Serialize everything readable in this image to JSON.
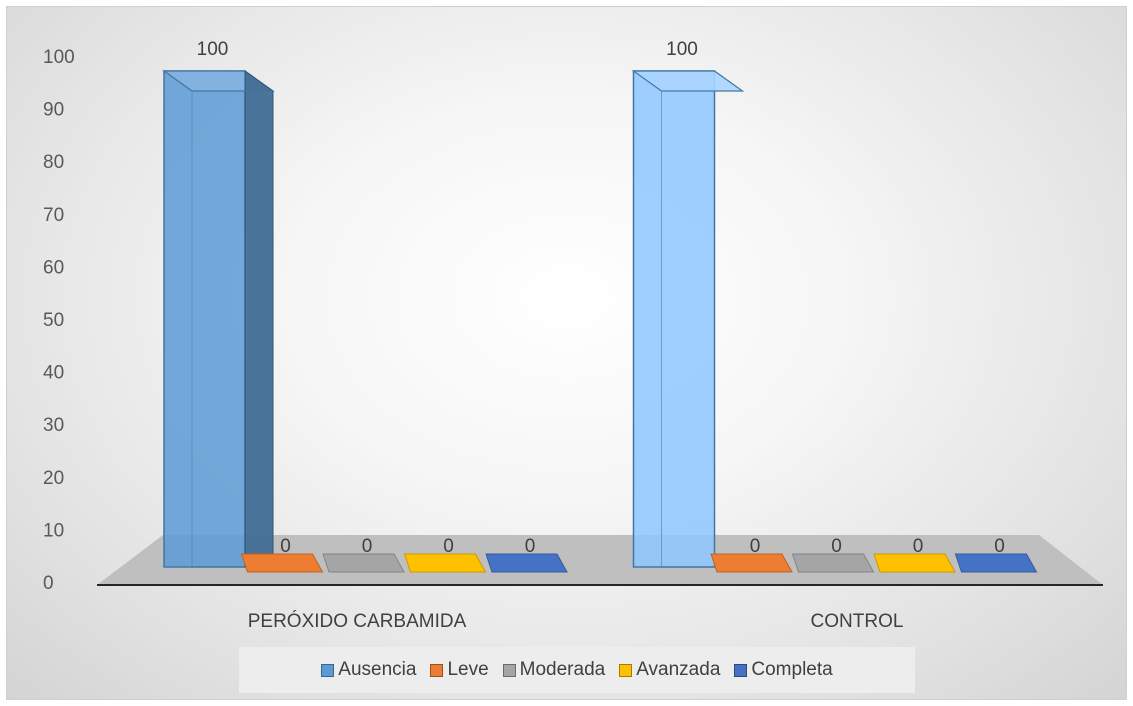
{
  "chart_data": {
    "type": "bar",
    "style": "3d-clustered-column",
    "categories": [
      "PERÓXIDO CARBAMIDA",
      "CONTROL"
    ],
    "series": [
      {
        "name": "Ausencia",
        "values": [
          100,
          100
        ],
        "color": "#5b9bd5"
      },
      {
        "name": "Leve",
        "values": [
          0,
          0
        ],
        "color": "#ed7d31"
      },
      {
        "name": "Moderada",
        "values": [
          0,
          0
        ],
        "color": "#a5a5a5"
      },
      {
        "name": "Avanzada",
        "values": [
          0,
          0
        ],
        "color": "#ffc000"
      },
      {
        "name": "Completa",
        "values": [
          0,
          0
        ],
        "color": "#4472c4"
      }
    ],
    "yticks": [
      "0",
      "10",
      "20",
      "30",
      "40",
      "50",
      "60",
      "70",
      "80",
      "90",
      "100"
    ],
    "ylim": [
      0,
      100
    ],
    "grid": false,
    "legend_position": "bottom",
    "data_labels": true
  }
}
